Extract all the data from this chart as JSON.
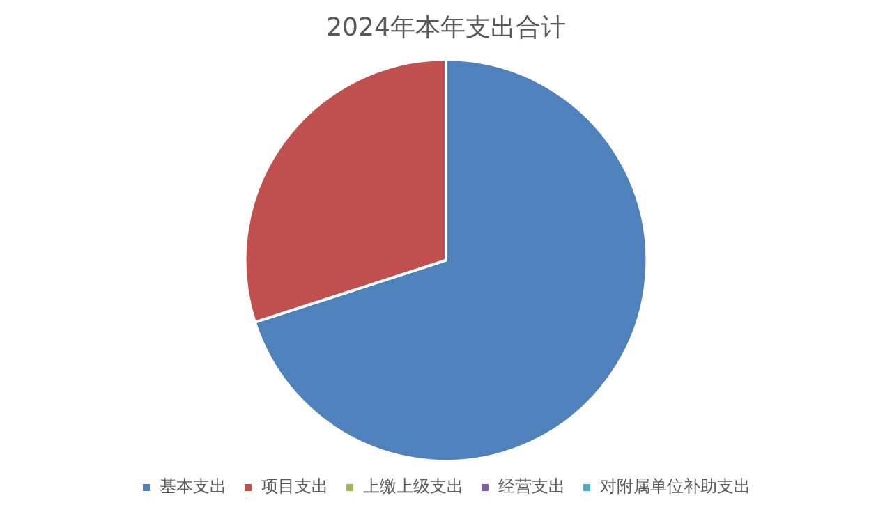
{
  "chart_data": {
    "type": "pie",
    "title": "2024年本年支出合计",
    "categories": [
      "基本支出",
      "项目支出",
      "上缴上级支出",
      "经营支出",
      "对附属单位补助支出"
    ],
    "values": [
      70,
      30,
      0,
      0,
      0
    ],
    "colors": [
      "#4f81bd",
      "#c0504d",
      "#9bbb59",
      "#8064a2",
      "#4bacc6"
    ],
    "legend": "bottom"
  }
}
